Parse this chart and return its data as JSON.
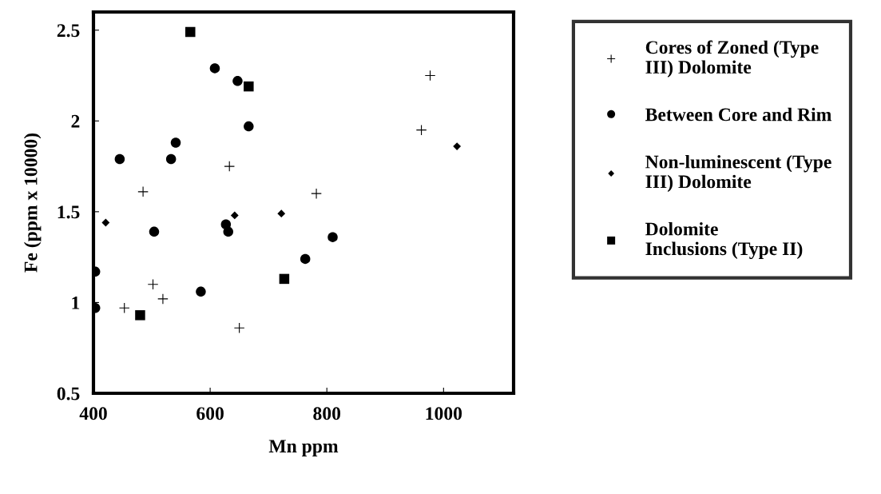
{
  "chart_data": {
    "type": "scatter",
    "xlabel": "Mn ppm",
    "ylabel": "Fe (ppm x 10000)",
    "xlim": [
      400,
      1120
    ],
    "xticks": [
      400,
      600,
      800,
      1000
    ],
    "ylim": [
      0.5,
      2.6
    ],
    "yticks": [
      0.5,
      1,
      1.5,
      2,
      2.5
    ],
    "grid": false,
    "legend": "right",
    "series": [
      {
        "name": "Cores of Zoned (Type III) Dolomite",
        "color": "#000000",
        "marker": "cross",
        "x": [
          977,
          962,
          633,
          485,
          782,
          502,
          519,
          453,
          650
        ],
        "values": [
          2.25,
          1.95,
          1.75,
          1.61,
          1.6,
          1.1,
          1.02,
          0.97,
          0.86
        ]
      },
      {
        "name": "Between Core and Rim",
        "color": "#000000",
        "marker": "circle",
        "x": [
          608,
          647,
          666,
          541,
          445,
          533,
          627,
          631,
          504,
          810,
          763,
          403,
          403,
          584
        ],
        "values": [
          2.29,
          2.22,
          1.97,
          1.88,
          1.79,
          1.79,
          1.43,
          1.39,
          1.39,
          1.36,
          1.24,
          1.17,
          0.97,
          1.06
        ]
      },
      {
        "name": "Non-luminescent (Type III) Dolomite",
        "color": "#000000",
        "marker": "diamond",
        "x": [
          421,
          642,
          722,
          1023
        ],
        "values": [
          1.44,
          1.48,
          1.49,
          1.86
        ]
      },
      {
        "name": "Dolomite Inclusions (Type II)",
        "color": "#000000",
        "marker": "square",
        "x": [
          566,
          666,
          727,
          480
        ],
        "values": [
          2.49,
          2.19,
          1.13,
          0.93
        ]
      }
    ]
  }
}
